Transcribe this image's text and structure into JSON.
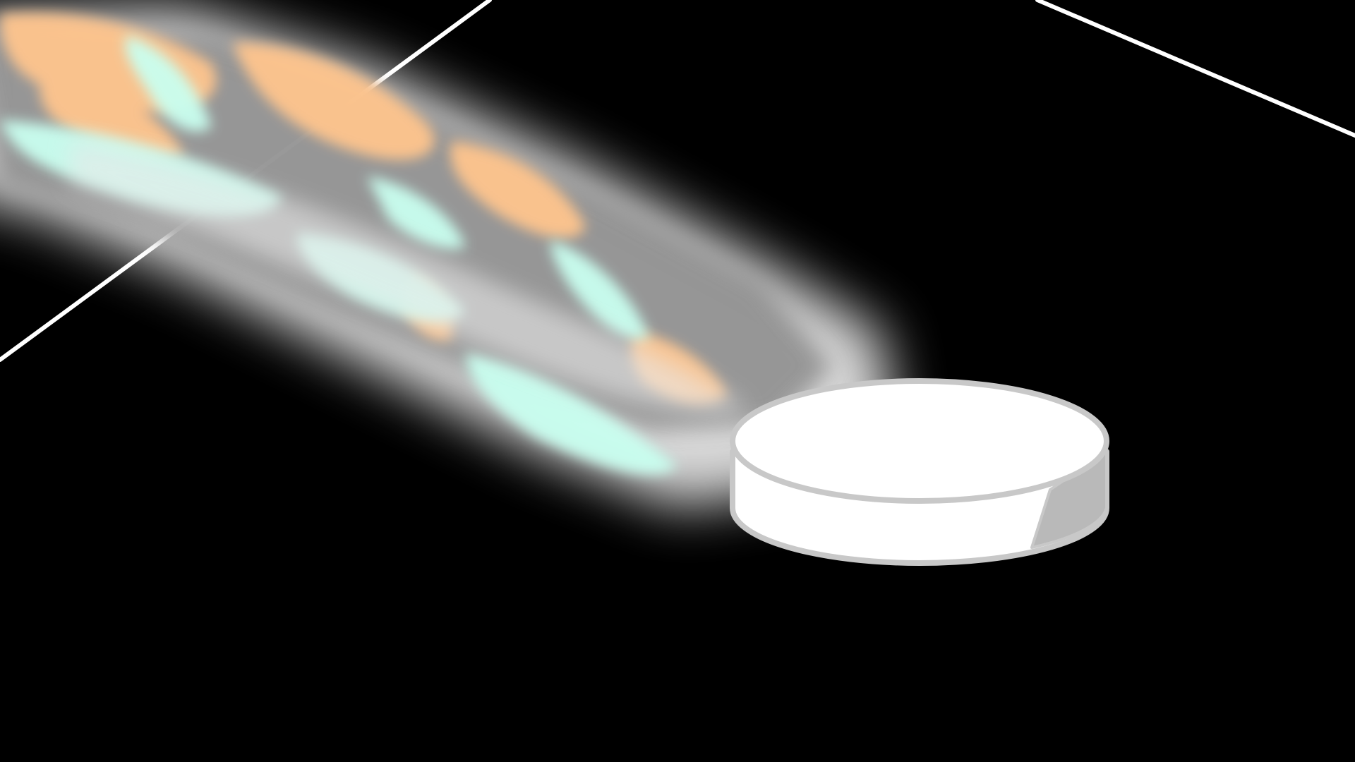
{
  "scene": {
    "background_color": "#000000",
    "rink_line_color": "#ffffff",
    "puck": {
      "top_color": "#ffffff",
      "outline_color": "#c8c8c8",
      "shade_color": "#b9b9b9"
    },
    "trail": {
      "orange_color": "#ffc58d",
      "mint_color": "#c9fff0",
      "gray_color": "#8f8f8f",
      "glow_color": "#ffffff"
    }
  }
}
